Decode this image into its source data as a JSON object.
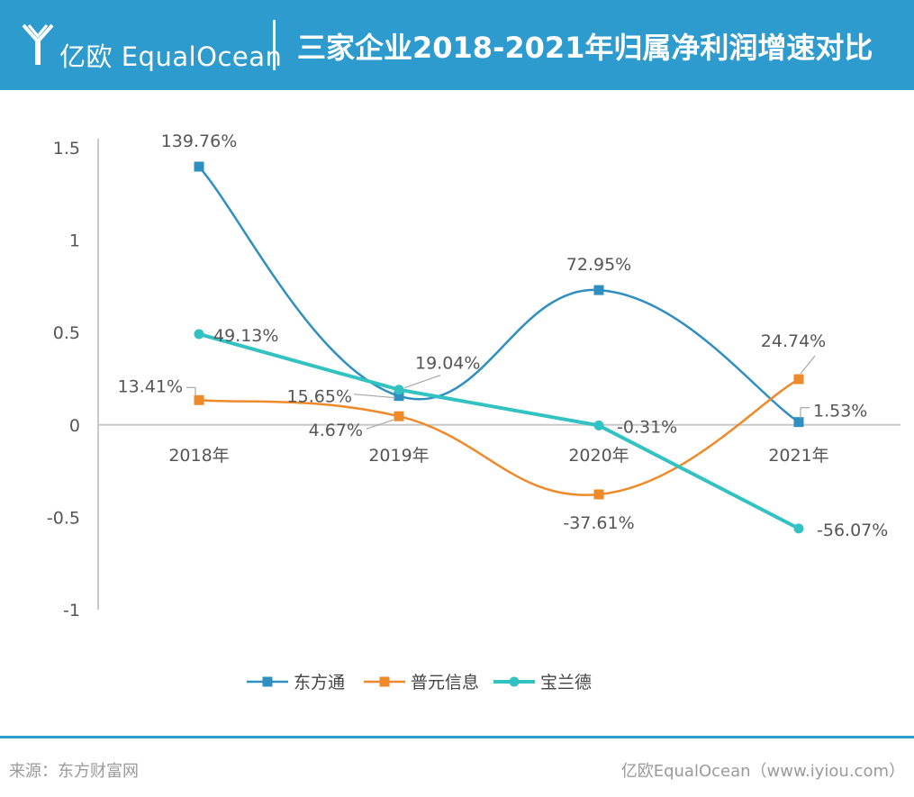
{
  "header": {
    "brand": "亿欧 EqualOcean",
    "title": "三家企业2018-2021年归属净利润增速对比"
  },
  "colors": {
    "header_bg": "#2e9bcf",
    "series": [
      "#2e8fc0",
      "#ee8a2a",
      "#32c2c2"
    ]
  },
  "chart_data": {
    "type": "line",
    "title": "三家企业2018-2021年归属净利润增速对比",
    "categories": [
      "2018年",
      "2019年",
      "2020年",
      "2021年"
    ],
    "ylim": [
      -1,
      1.5
    ],
    "yticks": [
      "1.5",
      "1",
      "0.5",
      "0",
      "-0.5",
      "-1"
    ],
    "ytick_values": [
      1.5,
      1,
      0.5,
      0,
      -0.5,
      -1
    ],
    "legend_position": "bottom",
    "series": [
      {
        "name": "东方通",
        "marker": "square",
        "values": [
          1.3976,
          0.1565,
          0.7295,
          0.0153
        ],
        "labels": [
          "139.76%",
          "15.65%",
          "72.95%",
          "1.53%"
        ]
      },
      {
        "name": "普元信息",
        "marker": "square",
        "values": [
          0.1341,
          0.0467,
          -0.3761,
          0.2474
        ],
        "labels": [
          "13.41%",
          "4.67%",
          "-37.61%",
          "24.74%"
        ]
      },
      {
        "name": "宝兰德",
        "marker": "circle",
        "values": [
          0.4913,
          0.1904,
          -0.0031,
          -0.5607
        ],
        "labels": [
          "49.13%",
          "19.04%",
          "-0.31%",
          "-56.07%"
        ]
      }
    ]
  },
  "footer": {
    "source": "来源：东方财富网",
    "credit": "亿欧EqualOcean（www.iyiou.com）"
  }
}
